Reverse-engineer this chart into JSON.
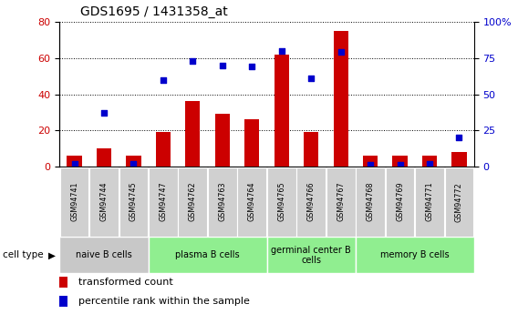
{
  "title": "GDS1695 / 1431358_at",
  "samples": [
    "GSM94741",
    "GSM94744",
    "GSM94745",
    "GSM94747",
    "GSM94762",
    "GSM94763",
    "GSM94764",
    "GSM94765",
    "GSM94766",
    "GSM94767",
    "GSM94768",
    "GSM94769",
    "GSM94771",
    "GSM94772"
  ],
  "transformed_count": [
    6,
    10,
    6,
    19,
    36,
    29,
    26,
    62,
    19,
    75,
    6,
    6,
    6,
    8
  ],
  "percentile_rank": [
    2,
    37,
    2,
    60,
    73,
    70,
    69,
    80,
    61,
    79,
    1,
    1,
    2,
    20
  ],
  "bar_color": "#cc0000",
  "dot_color": "#0000cc",
  "left_ylim": [
    0,
    80
  ],
  "right_ylim": [
    0,
    100
  ],
  "left_yticks": [
    0,
    20,
    40,
    60,
    80
  ],
  "right_yticks": [
    0,
    25,
    50,
    75,
    100
  ],
  "right_yticklabels": [
    "0",
    "25",
    "50",
    "75",
    "100%"
  ],
  "left_tick_color": "#cc0000",
  "right_tick_color": "#0000cc",
  "legend_bar_label": "transformed count",
  "legend_dot_label": "percentile rank within the sample",
  "groups": [
    {
      "label": "naive B cells",
      "start": 0,
      "end": 3,
      "color": "#c8c8c8"
    },
    {
      "label": "plasma B cells",
      "start": 3,
      "end": 7,
      "color": "#90ee90"
    },
    {
      "label": "germinal center B\ncells",
      "start": 7,
      "end": 10,
      "color": "#90ee90"
    },
    {
      "label": "memory B cells",
      "start": 10,
      "end": 14,
      "color": "#90ee90"
    }
  ],
  "sample_box_color": "#d0d0d0",
  "cell_type_label": "cell type",
  "figsize": [
    5.68,
    3.45
  ],
  "dpi": 100
}
